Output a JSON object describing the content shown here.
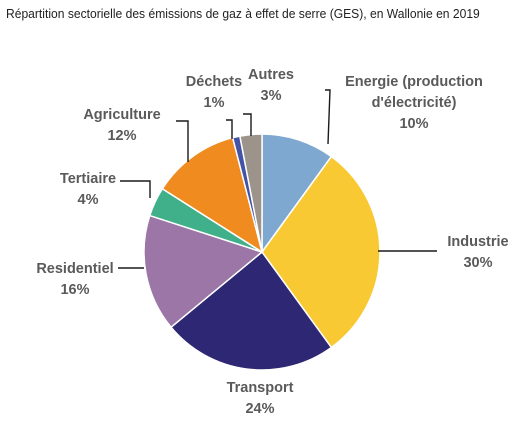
{
  "chart_data": {
    "type": "pie",
    "title": "Répartition sectorielle des émissions de gaz à effet de serre (GES), en Wallonie en 2019",
    "categories": [
      "Energie (production d'électricité)",
      "Industrie",
      "Transport",
      "Residentiel",
      "Tertiaire",
      "Agriculture",
      "Déchets",
      "Autres"
    ],
    "values": [
      10,
      30,
      24,
      16,
      4,
      12,
      1,
      3
    ],
    "value_labels": [
      "10%",
      "30%",
      "24%",
      "16%",
      "4%",
      "12%",
      "1%",
      "3%"
    ],
    "label_lines": [
      [
        "Energie (production",
        "d'électricité)"
      ],
      [
        "Industrie"
      ],
      [
        "Transport"
      ],
      [
        "Residentiel"
      ],
      [
        "Tertiaire"
      ],
      [
        "Agriculture"
      ],
      [
        "Déchets"
      ],
      [
        "Autres"
      ]
    ],
    "colors": [
      "#7fa8d1",
      "#f8c932",
      "#2e2773",
      "#9b76a6",
      "#3fb08a",
      "#ef8b1f",
      "#4553a6",
      "#9c948b"
    ],
    "start_angle_deg": 0,
    "direction": "clockwise",
    "legend": "none",
    "labels_outside": true
  }
}
